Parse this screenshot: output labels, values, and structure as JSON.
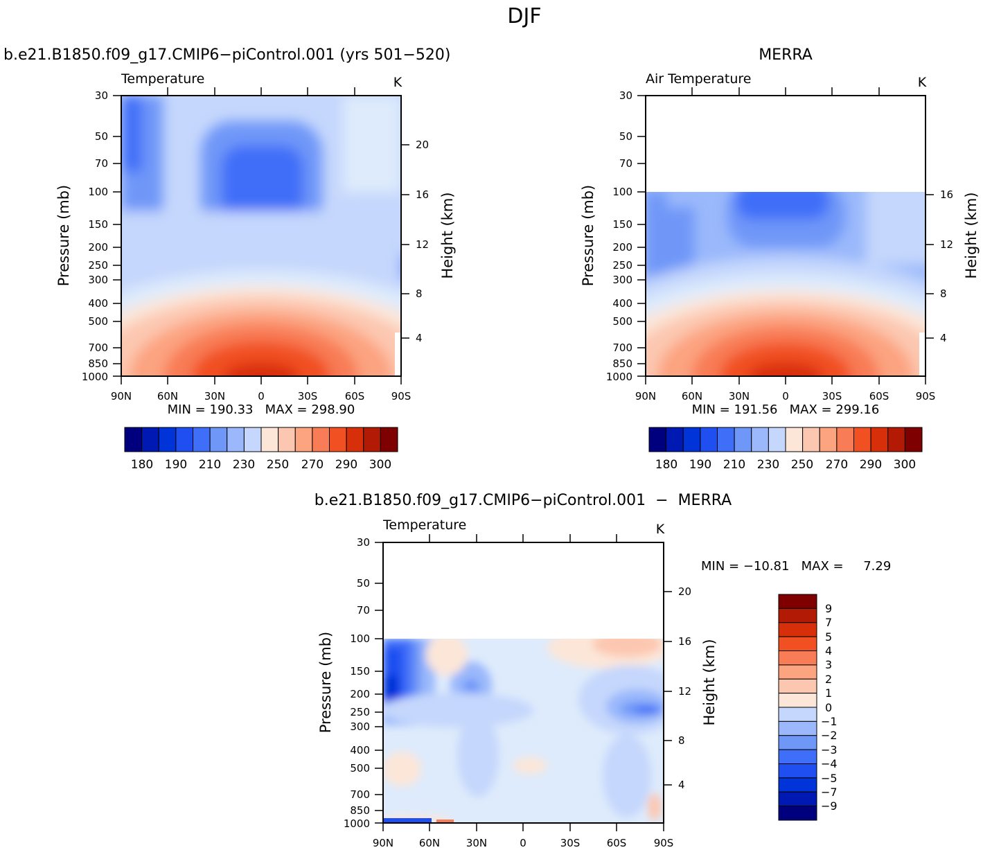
{
  "figure": {
    "title": "DJF"
  },
  "colors": {
    "temp_levels": [
      "#00007f",
      "#0019b2",
      "#0033d8",
      "#1f4ff0",
      "#3f6ef8",
      "#6f97f8",
      "#9ab8fb",
      "#c5d7fc",
      "#deebfc",
      "#fce6d8",
      "#fcc7b0",
      "#fca380",
      "#f87c55",
      "#f15023",
      "#d82f0b",
      "#b21a06",
      "#7f0000"
    ],
    "diff_levels": [
      "#00007f",
      "#0019b2",
      "#0033d8",
      "#1f4ff0",
      "#3f6ef8",
      "#6f97f8",
      "#9ab8fb",
      "#c5d7fc",
      "#deebfc",
      "#fce6d8",
      "#fcc7b0",
      "#fca380",
      "#f87c55",
      "#f15023",
      "#d82f0b",
      "#b21a06",
      "#7f0000"
    ]
  },
  "chart_data": [
    {
      "type": "heatmap",
      "panel": "model",
      "title": "b.e21.B1850.f09_g17.CMIP6−piControl.001 (yrs 501−520)",
      "variable": "Temperature",
      "units": "K",
      "xlabel": "",
      "ylabel": "Pressure (mb)",
      "ylabel_right": "Height (km)",
      "x_ticks": [
        "90N",
        "60N",
        "30N",
        "0",
        "30S",
        "60S",
        "90S"
      ],
      "y_ticks": [
        "30",
        "50",
        "70",
        "100",
        "150",
        "200",
        "250",
        "300",
        "400",
        "500",
        "700",
        "850",
        "1000"
      ],
      "y_ticks_right": [
        "20",
        "16",
        "12",
        "8",
        "4"
      ],
      "stats": "MIN = 190.33   MAX = 298.90",
      "min": 190.33,
      "max": 298.9,
      "colorbar_labels": [
        "180",
        "190",
        "210",
        "230",
        "250",
        "270",
        "290",
        "300"
      ],
      "data_top_pressure": 30
    },
    {
      "type": "heatmap",
      "panel": "obs",
      "title": "MERRA",
      "variable": "Air Temperature",
      "units": "K",
      "xlabel": "",
      "ylabel": "Pressure (mb)",
      "ylabel_right": "Height (km)",
      "x_ticks": [
        "90N",
        "60N",
        "30N",
        "0",
        "30S",
        "60S",
        "90S"
      ],
      "y_ticks": [
        "30",
        "50",
        "70",
        "100",
        "150",
        "200",
        "250",
        "300",
        "400",
        "500",
        "700",
        "850",
        "1000"
      ],
      "y_ticks_right": [
        "16",
        "12",
        "8",
        "4"
      ],
      "stats": "MIN = 191.56   MAX = 299.16",
      "min": 191.56,
      "max": 299.16,
      "colorbar_labels": [
        "180",
        "190",
        "210",
        "230",
        "250",
        "270",
        "290",
        "300"
      ],
      "data_top_pressure": 100
    },
    {
      "type": "heatmap",
      "panel": "diff",
      "title": "b.e21.B1850.f09_g17.CMIP6−piControl.001  −  MERRA",
      "variable": "Temperature",
      "units": "K",
      "xlabel": "",
      "ylabel": "Pressure (mb)",
      "ylabel_right": "Height (km)",
      "x_ticks": [
        "90N",
        "60N",
        "30N",
        "0",
        "30S",
        "60S",
        "90S"
      ],
      "y_ticks": [
        "30",
        "50",
        "70",
        "100",
        "150",
        "200",
        "250",
        "300",
        "400",
        "500",
        "700",
        "850",
        "1000"
      ],
      "y_ticks_right": [
        "20",
        "16",
        "12",
        "8",
        "4"
      ],
      "stats": "MIN = −10.81   MAX =     7.29",
      "min": -10.81,
      "max": 7.29,
      "colorbar_labels": [
        "9",
        "7",
        "5",
        "4",
        "3",
        "2",
        "1",
        "0",
        "−1",
        "−2",
        "−3",
        "−4",
        "−5",
        "−7",
        "−9"
      ],
      "data_top_pressure": 100
    }
  ]
}
